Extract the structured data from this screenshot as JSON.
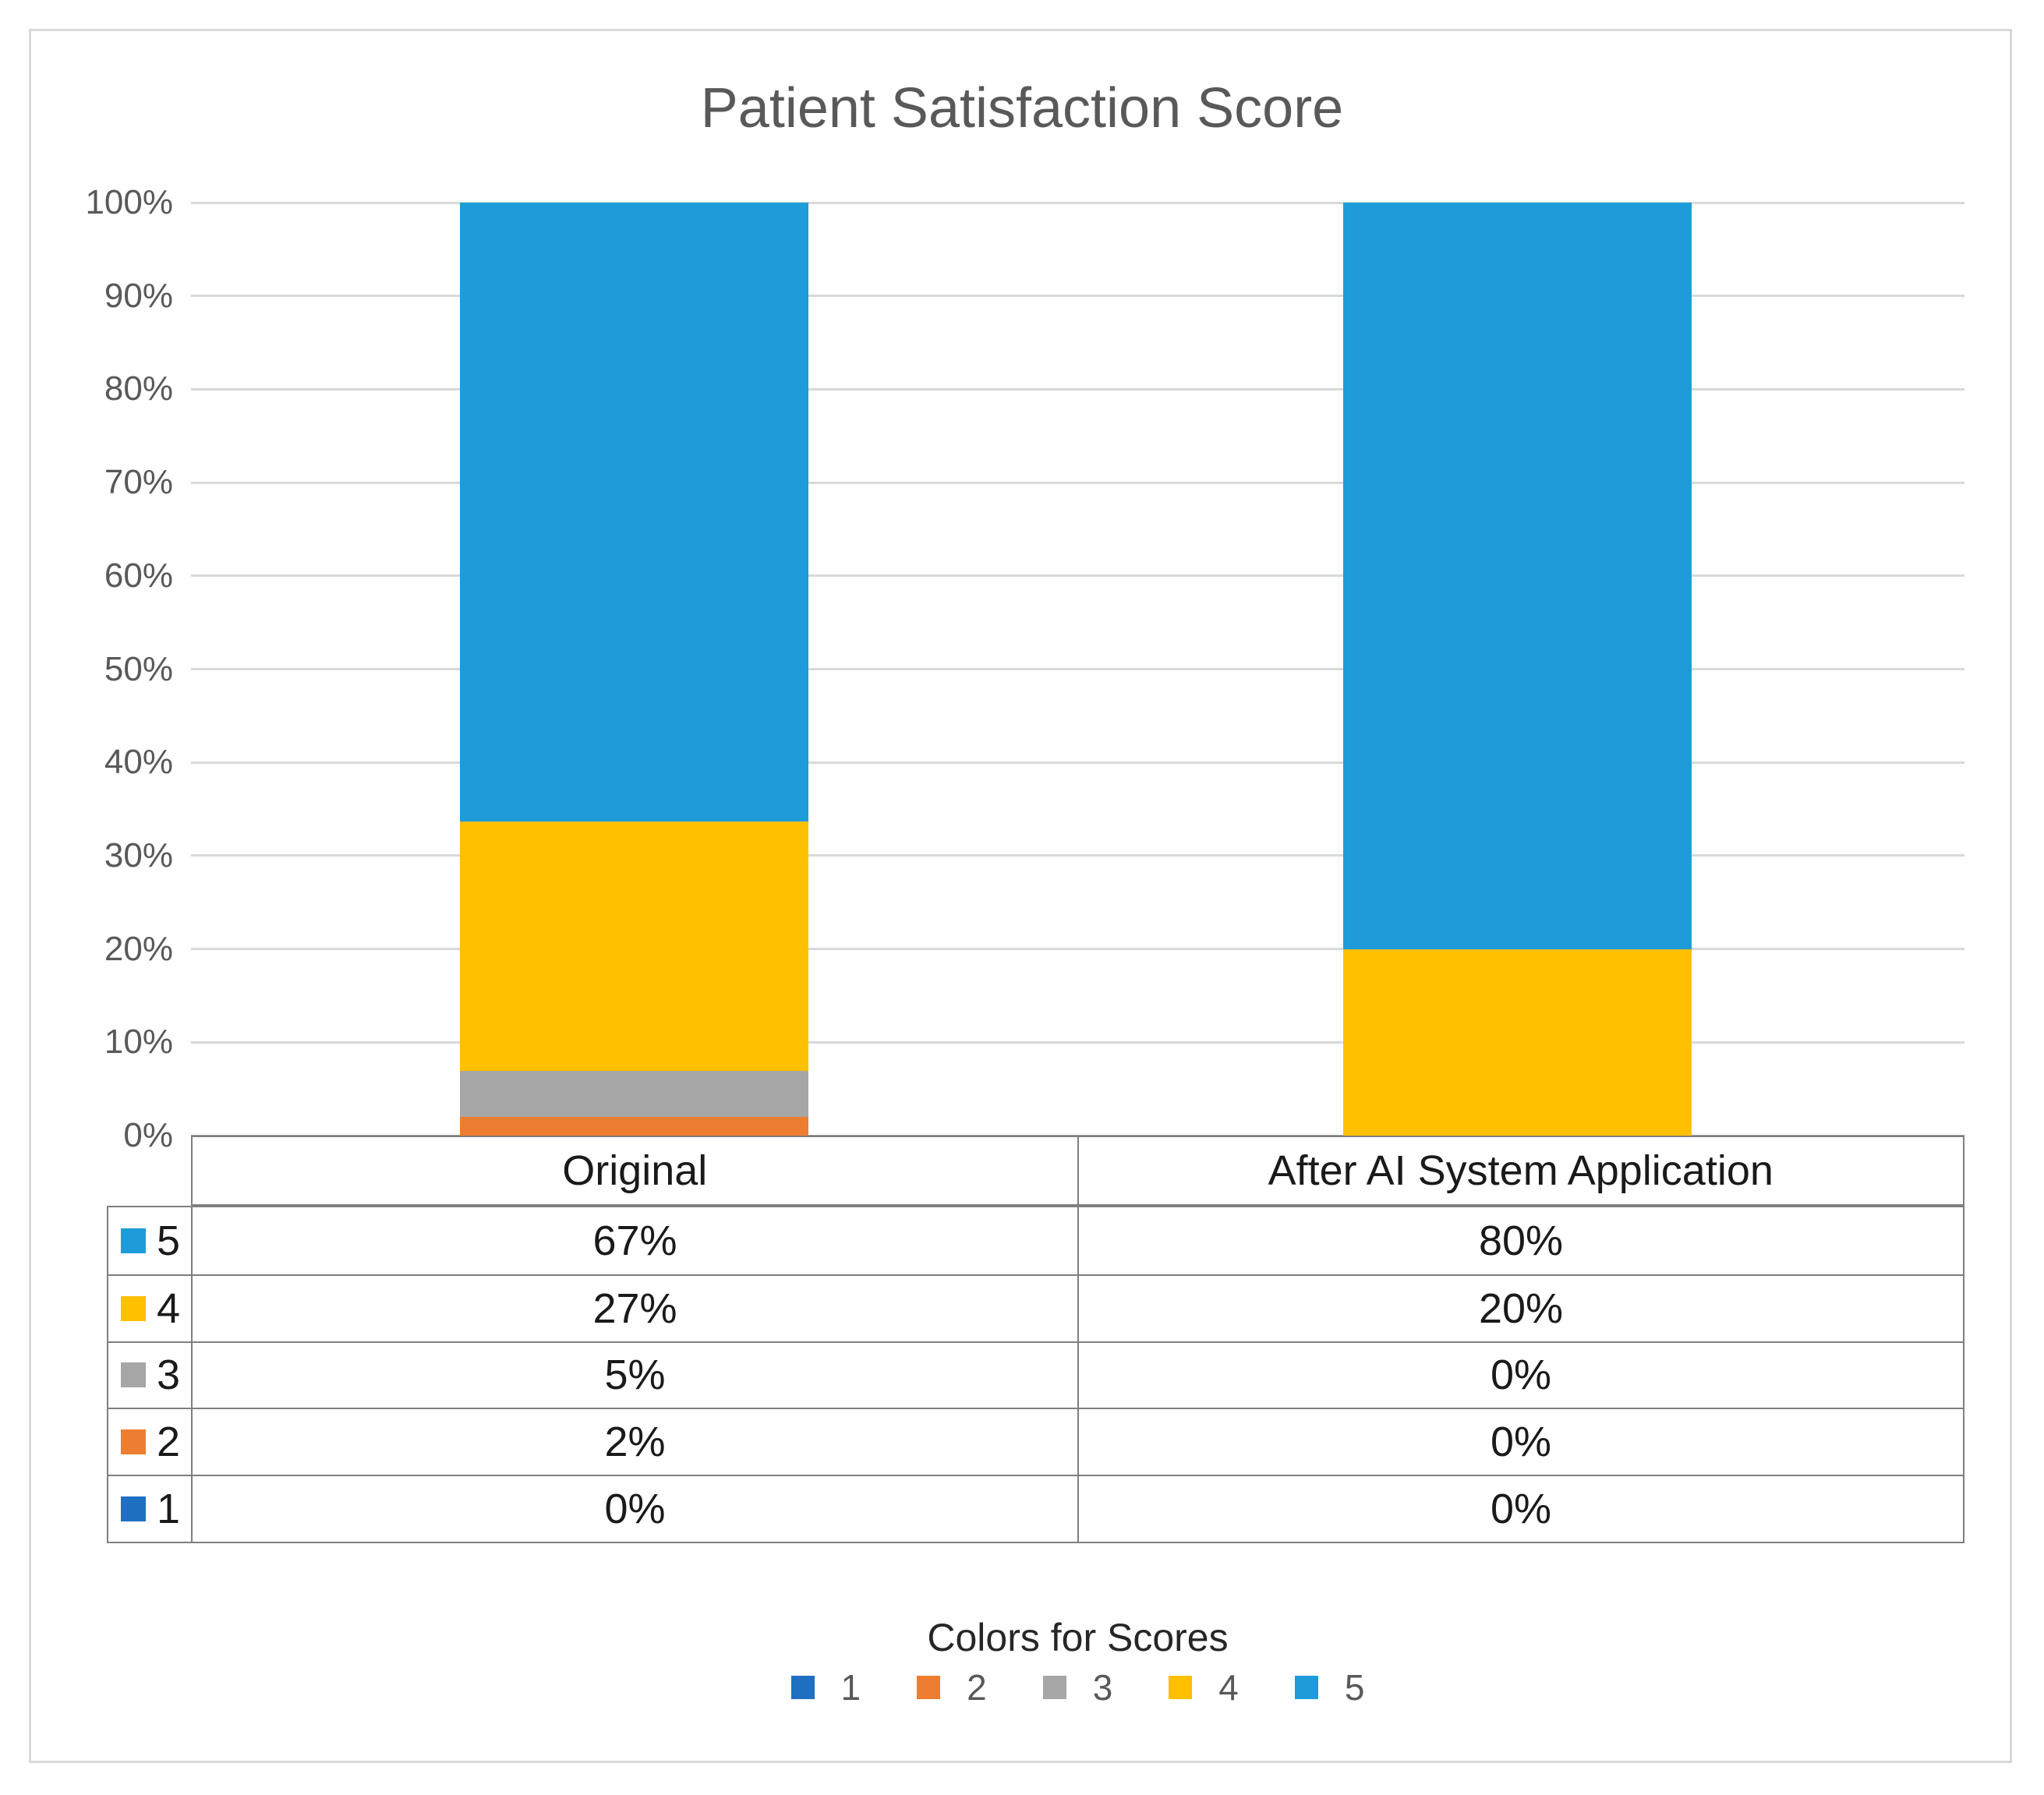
{
  "chart_data": {
    "type": "bar",
    "variant": "stacked-100-percent",
    "title": "Patient Satisfaction Score",
    "categories": [
      "Original",
      "After AI System Application"
    ],
    "series": [
      {
        "name": "1",
        "color": "#1F70C1",
        "values": [
          0,
          0
        ],
        "labels": [
          "0%",
          "0%"
        ]
      },
      {
        "name": "2",
        "color": "#ED7D31",
        "values": [
          2,
          0
        ],
        "labels": [
          "2%",
          "0%"
        ]
      },
      {
        "name": "3",
        "color": "#A6A6A6",
        "values": [
          5,
          0
        ],
        "labels": [
          "5%",
          "0%"
        ]
      },
      {
        "name": "4",
        "color": "#FFC000",
        "values": [
          27,
          20
        ],
        "labels": [
          "27%",
          "20%"
        ]
      },
      {
        "name": "5",
        "color": "#1E9CD9",
        "values": [
          67,
          80
        ],
        "labels": [
          "67%",
          "80%"
        ]
      }
    ],
    "y_ticks": [
      "100%",
      "90%",
      "80%",
      "70%",
      "60%",
      "50%",
      "40%",
      "30%",
      "20%",
      "10%",
      "0%"
    ],
    "ylim": [
      0,
      100
    ],
    "grid": true,
    "data_table_row_order": [
      "5",
      "4",
      "3",
      "2",
      "1"
    ],
    "legend": {
      "title": "Colors for Scores",
      "entries": [
        "1",
        "2",
        "3",
        "4",
        "5"
      ],
      "position": "bottom"
    },
    "colors": {
      "gridline": "#D9D9D9",
      "axis_line": "#9C9C9C",
      "table_border": "#7F7F7F",
      "title_text": "#595959",
      "tick_text": "#595959",
      "figure_border": "#D9D9D9"
    }
  }
}
